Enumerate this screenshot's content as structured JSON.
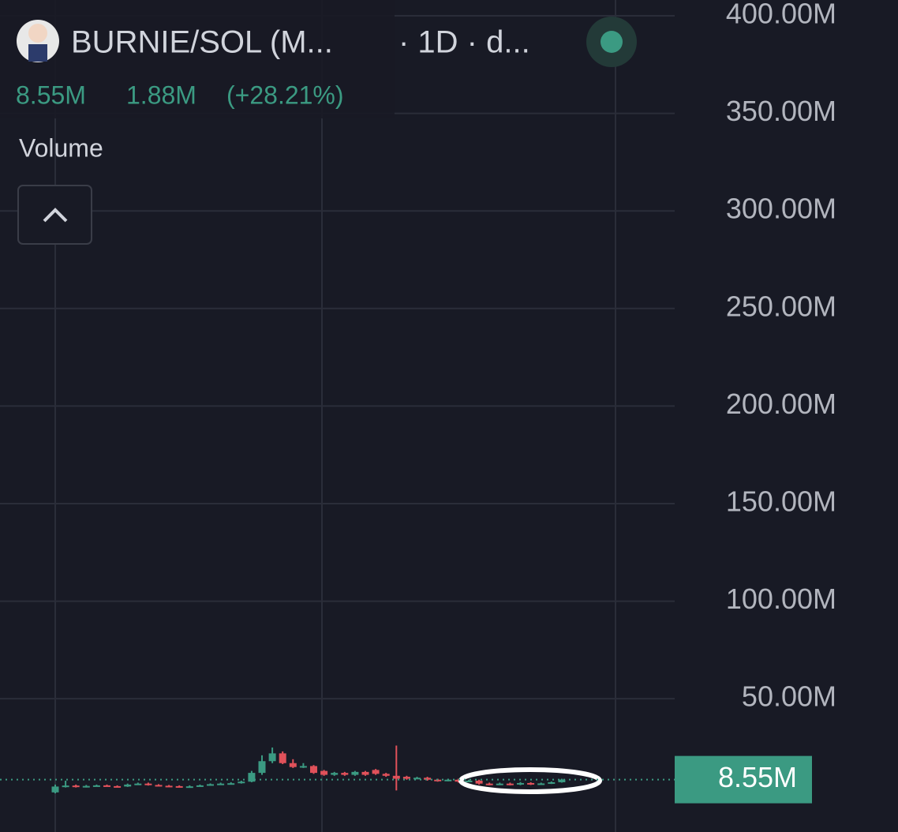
{
  "chart_data": {
    "type": "candlestick",
    "title": "BURNIE/SOL (M...",
    "subtitle": "· 1D · d...",
    "header_values": [
      "8.55M",
      "1.88M",
      "(+28.21%)"
    ],
    "indicator": "Volume",
    "ylim": [
      -18.3,
      408.1
    ],
    "yticks": [
      {
        "value": 50,
        "label": "50.00M"
      },
      {
        "value": 100,
        "label": "100.00M"
      },
      {
        "value": 150,
        "label": "150.00M"
      },
      {
        "value": 200,
        "label": "200.00M"
      },
      {
        "value": 250,
        "label": "250.00M"
      },
      {
        "value": 300,
        "label": "300.00M"
      },
      {
        "value": 350,
        "label": "350.00M"
      },
      {
        "value": 400,
        "label": "400.00M"
      }
    ],
    "grid": true,
    "up_color": "#3b9a82",
    "down_color": "#e0515a",
    "last_price": {
      "value": 8.55,
      "label": "8.55M"
    },
    "open": [
      2,
      5,
      5.5,
      4.8,
      5.3,
      5.6,
      5.2,
      5,
      6,
      6.5,
      5.8,
      5.4,
      5.2,
      5,
      5.1,
      5.6,
      6.2,
      6.5,
      6.7,
      7.5,
      12,
      18,
      22,
      17,
      15,
      15.5,
      13,
      11,
      12,
      11,
      12.5,
      13.5,
      11.5,
      10.5,
      10,
      9,
      9.5,
      8.5,
      8,
      8.5,
      7.5,
      8,
      6.5,
      6,
      6.5,
      6,
      6.8,
      6.2,
      6.6,
      7.2
    ],
    "high": [
      6,
      8,
      6,
      5.8,
      6,
      6,
      5.6,
      6.5,
      7,
      7,
      6.2,
      5.8,
      5.6,
      5.6,
      6,
      6.6,
      7,
      7.2,
      8,
      13,
      21,
      25,
      23,
      19,
      17,
      16,
      13.5,
      12.5,
      12.5,
      13,
      13,
      14,
      12,
      26,
      10.5,
      10,
      10,
      9,
      9,
      9,
      8.5,
      8.5,
      7,
      7,
      7,
      7.3,
      7.2,
      7,
      7.6,
      9
    ],
    "low": [
      1.5,
      4.5,
      4.5,
      4.5,
      5,
      5,
      4.7,
      4.8,
      5.8,
      5.5,
      5.2,
      5,
      4.8,
      4.8,
      5,
      5.4,
      6,
      6.3,
      6.5,
      7.2,
      11,
      17,
      16.5,
      14.5,
      14.5,
      11.5,
      10.5,
      10.5,
      10.5,
      10.5,
      10.5,
      11,
      10,
      3,
      8.5,
      8.8,
      8,
      7.5,
      7.7,
      7,
      7.2,
      6,
      5.6,
      5.7,
      5.6,
      5.7,
      5.8,
      6,
      6.3,
      7
    ],
    "close": [
      5,
      5.5,
      4.8,
      5.3,
      5.6,
      5.2,
      5,
      6,
      6.5,
      5.8,
      5.4,
      5.2,
      5,
      5.1,
      5.6,
      6.2,
      6.5,
      6.7,
      7.5,
      12,
      18,
      22,
      17,
      15,
      15.5,
      12,
      11,
      12,
      11,
      12.5,
      11,
      11.5,
      10.5,
      9,
      9,
      9.5,
      8.5,
      8,
      8.5,
      7.5,
      8,
      6.5,
      6,
      6.5,
      6,
      6.8,
      6.2,
      6.6,
      7.2,
      8.55
    ]
  }
}
